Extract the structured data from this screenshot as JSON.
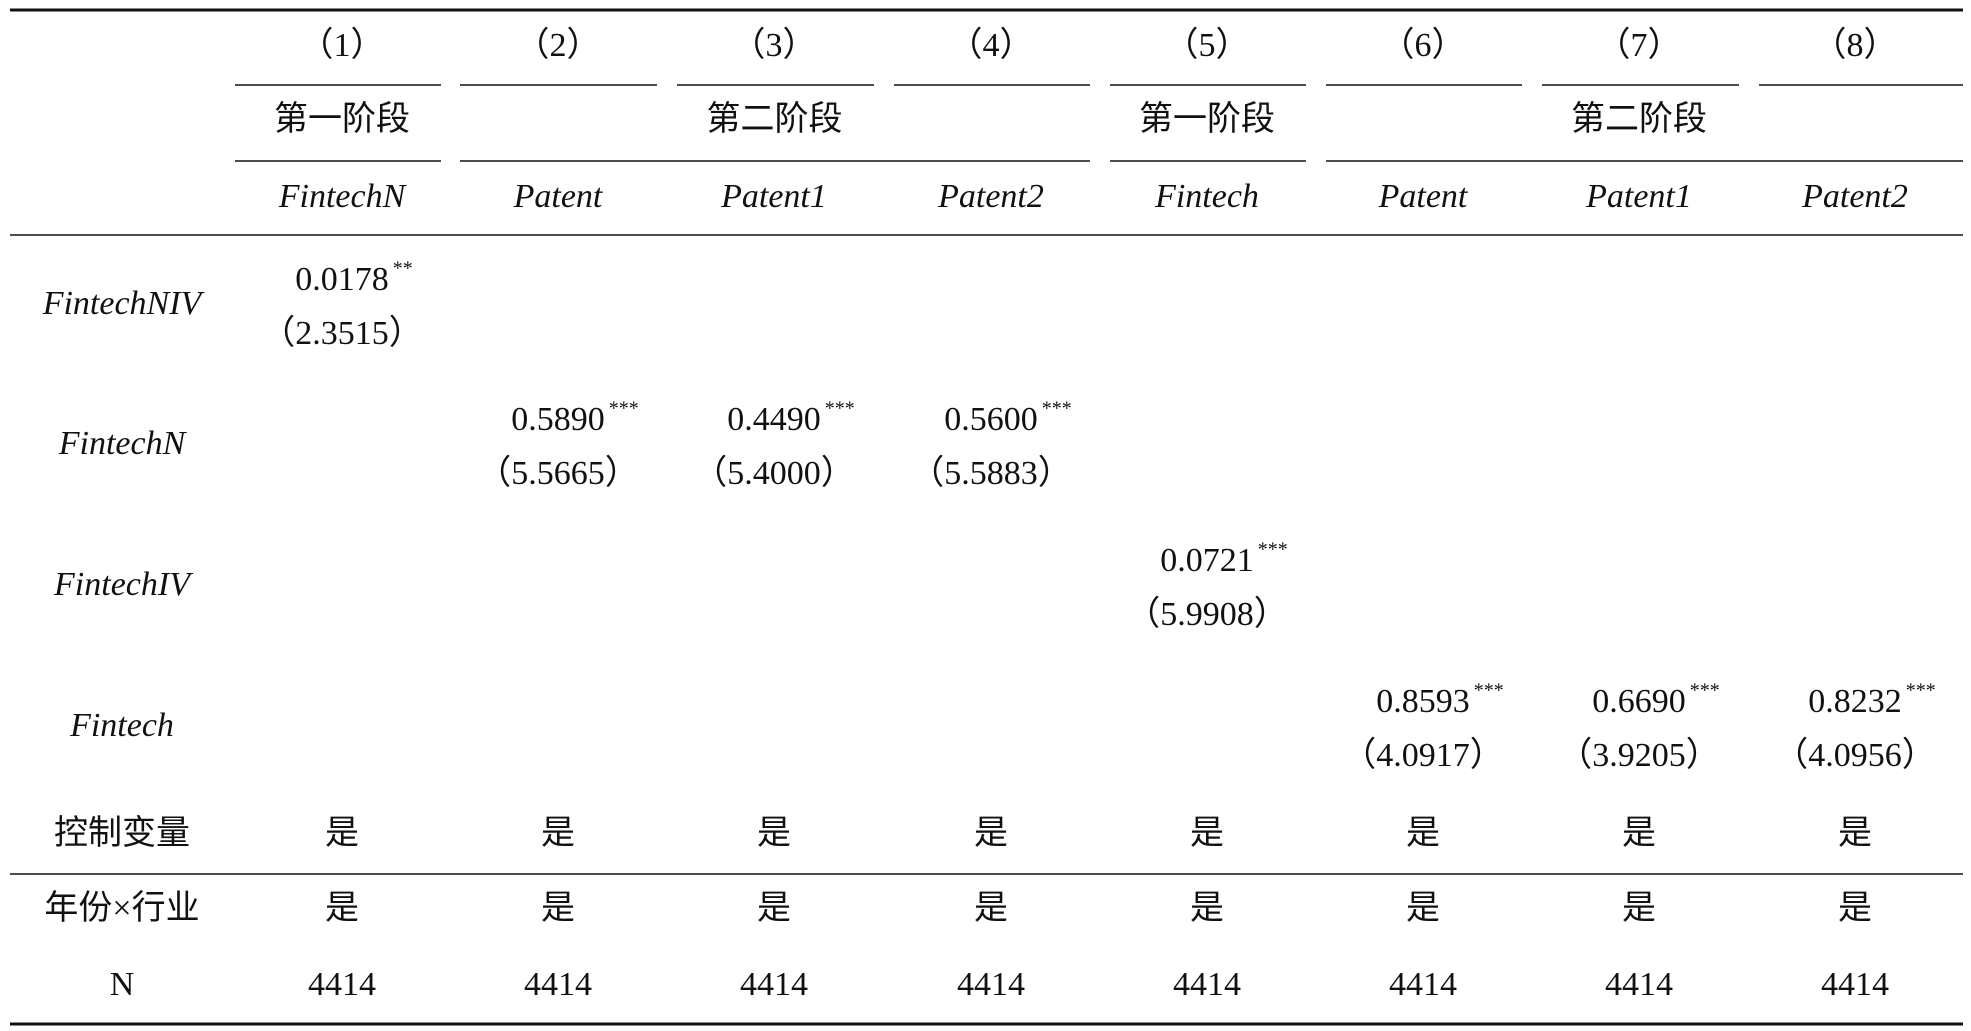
{
  "header": {
    "columns": [
      "（1）",
      "（2）",
      "（3）",
      "（4）",
      "（5）",
      "（6）",
      "（7）",
      "（8）"
    ],
    "stages": [
      "第一阶段",
      "第二阶段",
      "第一阶段",
      "第二阶段"
    ],
    "dependent": [
      "FintechN",
      "Patent",
      "Patent1",
      "Patent2",
      "Fintech",
      "Patent",
      "Patent1",
      "Patent2"
    ]
  },
  "table": {
    "rows": [
      {
        "label": "FintechNIV",
        "cells": [
          {
            "coef": "0.0178",
            "stars": "**",
            "t": "（2.3515）"
          },
          null,
          null,
          null,
          null,
          null,
          null,
          null
        ]
      },
      {
        "label": "FintechN",
        "cells": [
          null,
          {
            "coef": "0.5890",
            "stars": "***",
            "t": "（5.5665）"
          },
          {
            "coef": "0.4490",
            "stars": "***",
            "t": "（5.4000）"
          },
          {
            "coef": "0.5600",
            "stars": "***",
            "t": "（5.5883）"
          },
          null,
          null,
          null,
          null
        ]
      },
      {
        "label": "FintechIV",
        "cells": [
          null,
          null,
          null,
          null,
          {
            "coef": "0.0721",
            "stars": "***",
            "t": "（5.9908）"
          },
          null,
          null,
          null
        ]
      },
      {
        "label": "Fintech",
        "cells": [
          null,
          null,
          null,
          null,
          null,
          {
            "coef": "0.8593",
            "stars": "***",
            "t": "（4.0917）"
          },
          {
            "coef": "0.6690",
            "stars": "***",
            "t": "（3.9205）"
          },
          {
            "coef": "0.8232",
            "stars": "***",
            "t": "（4.0956）"
          }
        ]
      }
    ],
    "controls": [
      {
        "label": "控制变量",
        "values": [
          "是",
          "是",
          "是",
          "是",
          "是",
          "是",
          "是",
          "是"
        ]
      },
      {
        "label": "年份×行业",
        "values": [
          "是",
          "是",
          "是",
          "是",
          "是",
          "是",
          "是",
          "是"
        ]
      },
      {
        "label": "N",
        "values": [
          "4414",
          "4414",
          "4414",
          "4414",
          "4414",
          "4414",
          "4414",
          "4414"
        ]
      }
    ]
  }
}
